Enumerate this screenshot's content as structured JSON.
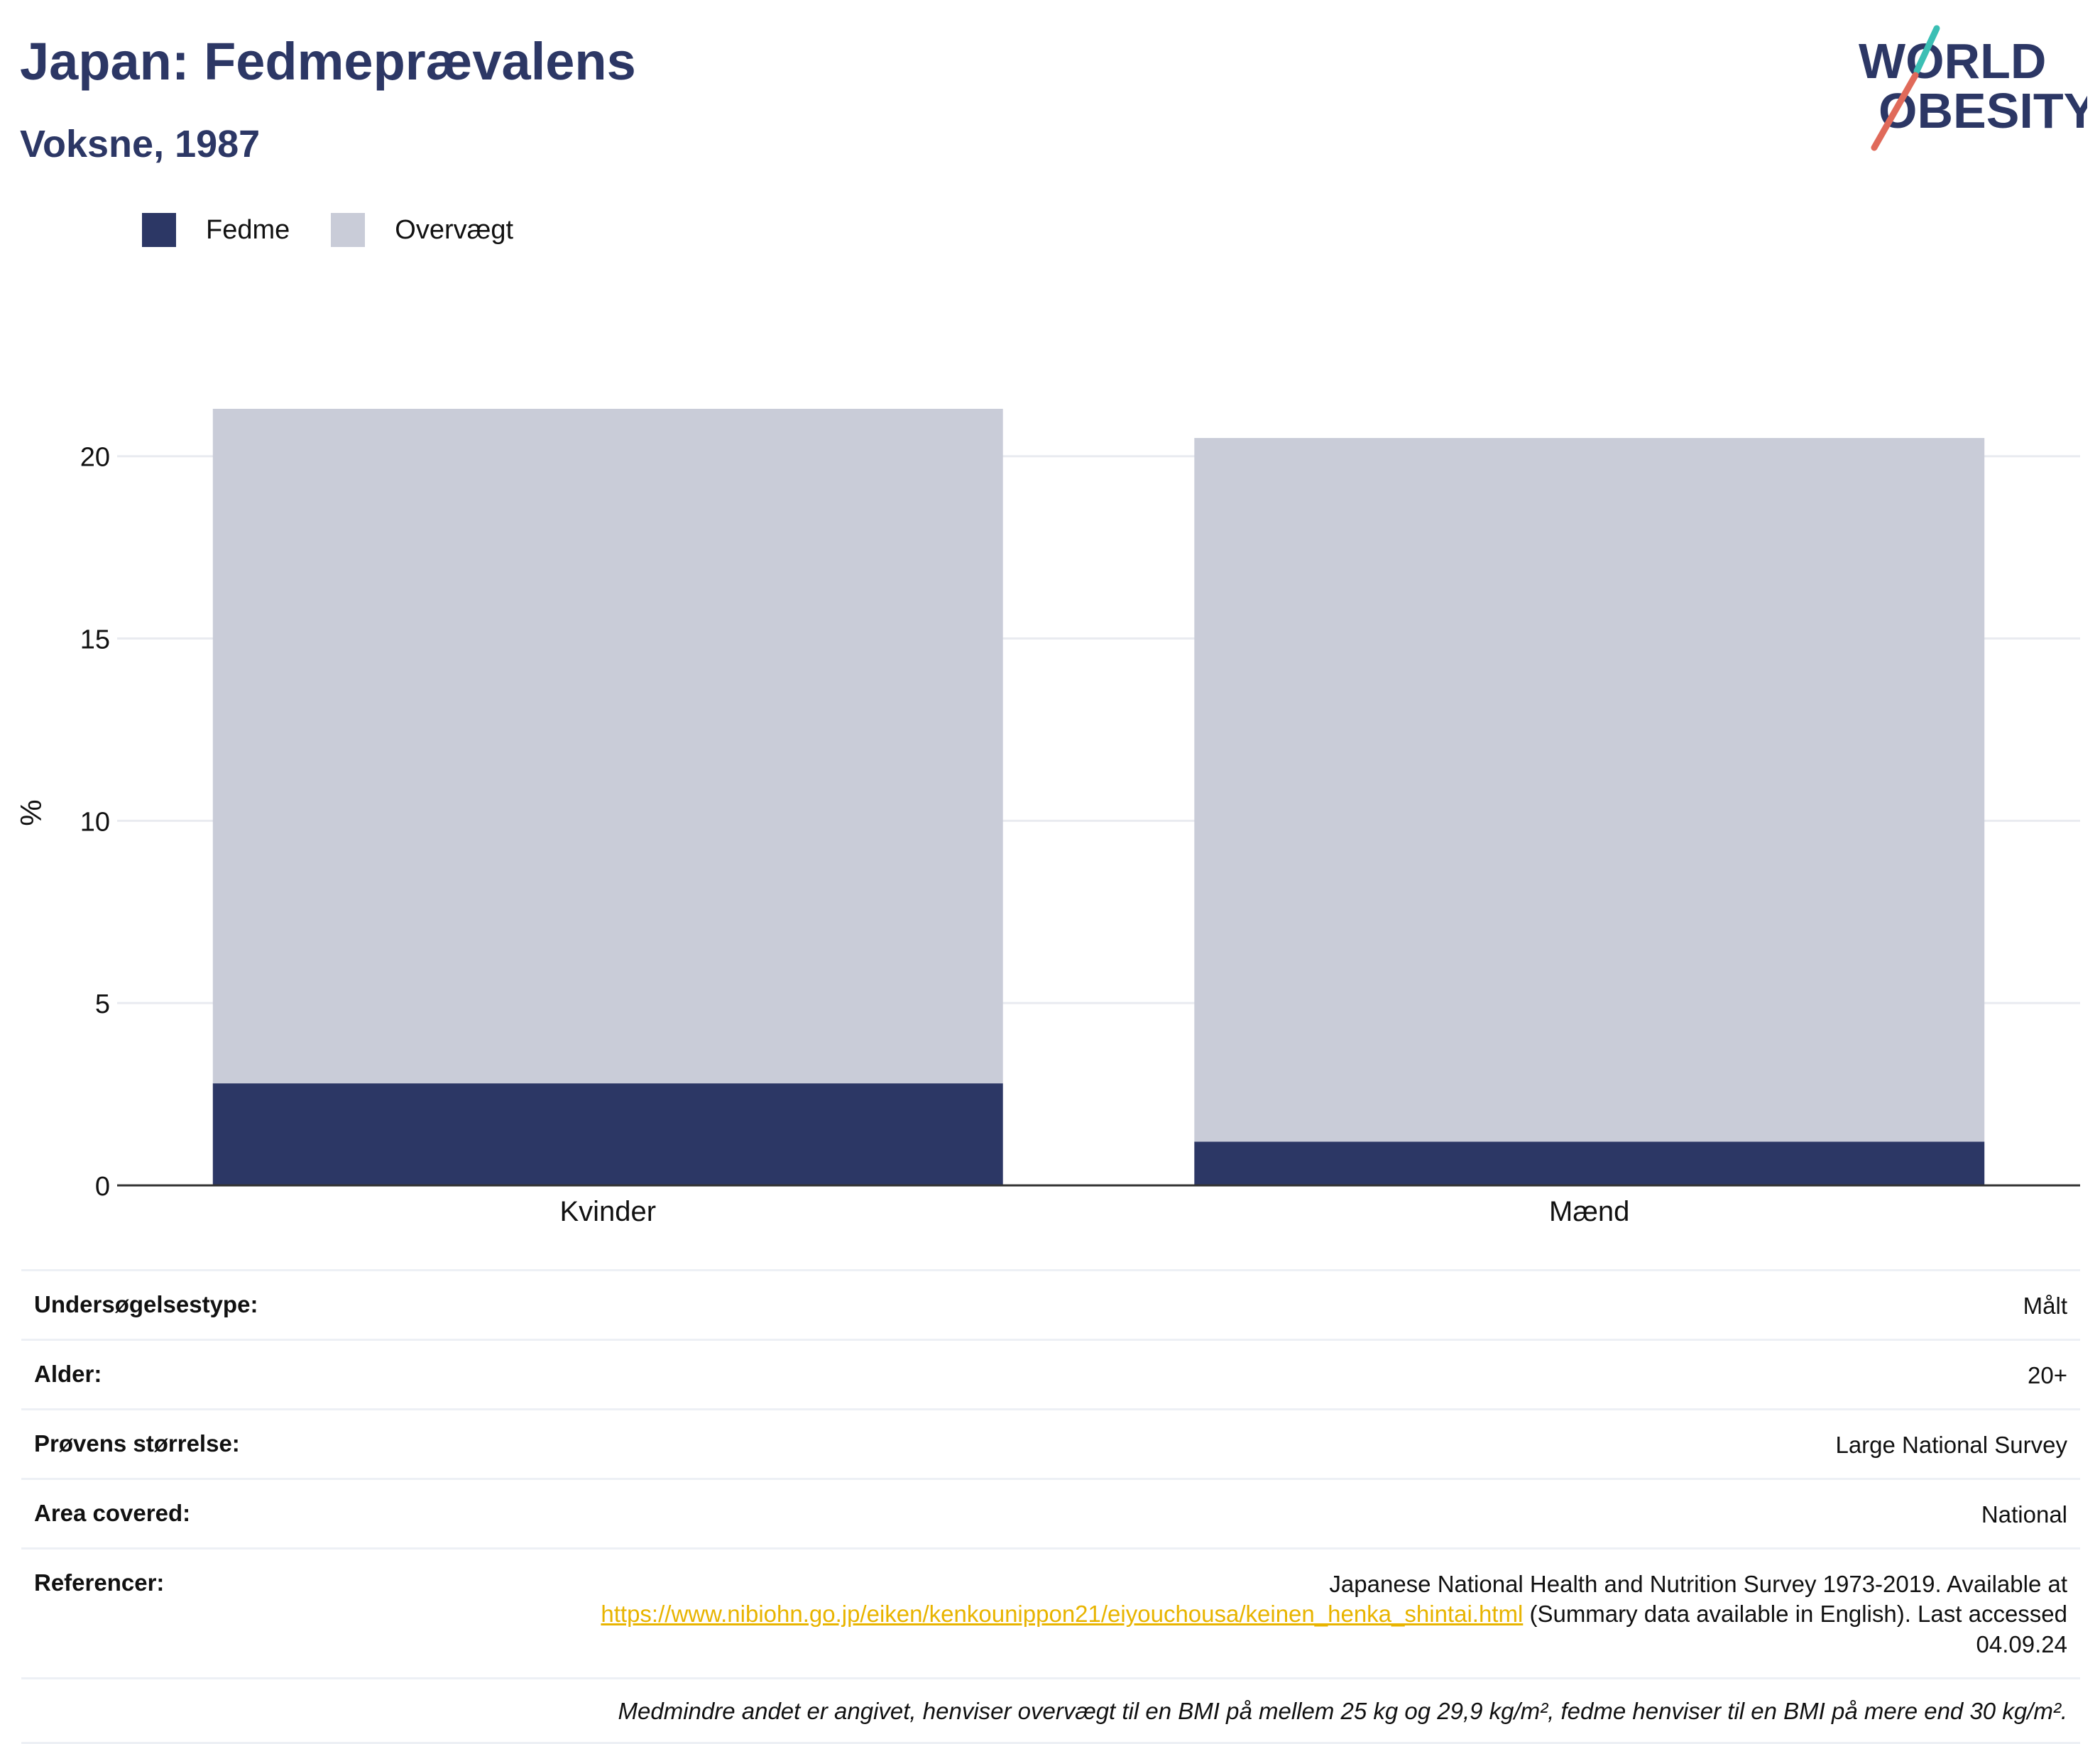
{
  "title": "Japan: Fedmeprævalens",
  "subtitle": "Voksne, 1987",
  "logo": {
    "line1": "WORLD",
    "line2": "OBESITY"
  },
  "legend": [
    {
      "label": "Fedme",
      "color": "#2c3765"
    },
    {
      "label": "Overvægt",
      "color": "#c9ccd8"
    }
  ],
  "chart_data": {
    "type": "bar",
    "stacked": true,
    "categories": [
      "Kvinder",
      "Mænd"
    ],
    "series": [
      {
        "name": "Fedme",
        "values": [
          2.8,
          1.2
        ],
        "color": "#2c3765"
      },
      {
        "name": "Overvægt",
        "values": [
          18.5,
          19.3
        ],
        "color": "#c9ccd8"
      }
    ],
    "ylabel": "%",
    "ylim": [
      0,
      22
    ],
    "yticks": [
      0,
      5,
      10,
      15,
      20
    ],
    "grid": true,
    "legend_position": "top-left"
  },
  "meta": {
    "rows": [
      {
        "key": "Undersøgelsestype:",
        "value": "Målt"
      },
      {
        "key": "Alder:",
        "value": "20+"
      },
      {
        "key": "Prøvens størrelse:",
        "value": "Large National Survey"
      },
      {
        "key": "Area covered:",
        "value": "National"
      }
    ],
    "references": {
      "key": "Referencer:",
      "text_before": "Japanese National Health and Nutrition Survey 1973-2019. Available at",
      "link": "https://www.nibiohn.go.jp/eiken/kenkounippon21/eiyouchousa/keinen_henka_shintai.html",
      "text_after": " (Summary data available in English). Last accessed 04.09.24"
    },
    "note": "Medmindre andet er angivet, henviser overvægt til en BMI på mellem 25 kg og 29,9 kg/m², fedme henviser til en BMI på mere end 30 kg/m²."
  }
}
